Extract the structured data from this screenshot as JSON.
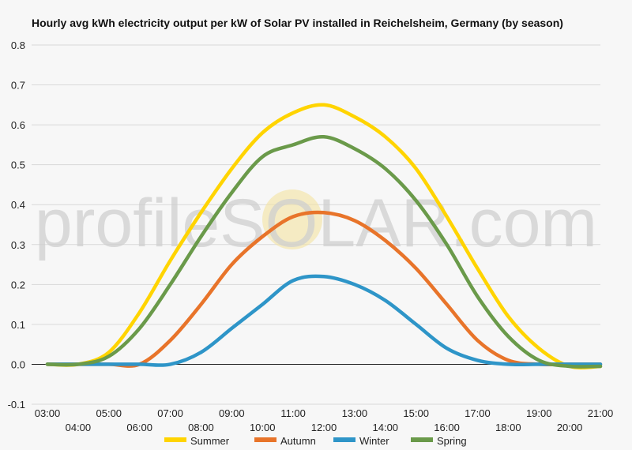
{
  "chart_data": {
    "type": "line",
    "title": "Hourly avg kWh electricity output per kW of Solar PV installed in Reichelsheim, Germany (by season)",
    "xlabel": "",
    "ylabel": "",
    "x_range": [
      3,
      21
    ],
    "ylim": [
      -0.1,
      0.8
    ],
    "y_ticks": [
      -0.1,
      0.0,
      0.1,
      0.2,
      0.3,
      0.4,
      0.5,
      0.6,
      0.7,
      0.8
    ],
    "y_tick_labels": [
      "-0.1",
      "0.0",
      "0.1",
      "0.2",
      "0.3",
      "0.4",
      "0.5",
      "0.6",
      "0.7",
      "0.8"
    ],
    "x_ticks_upper": [
      {
        "value": 3,
        "label": "03:00"
      },
      {
        "value": 5,
        "label": "05:00"
      },
      {
        "value": 7,
        "label": "07:00"
      },
      {
        "value": 9,
        "label": "09:00"
      },
      {
        "value": 11,
        "label": "11:00"
      },
      {
        "value": 13,
        "label": "13:00"
      },
      {
        "value": 15,
        "label": "15:00"
      },
      {
        "value": 17,
        "label": "17:00"
      },
      {
        "value": 19,
        "label": "19:00"
      },
      {
        "value": 21,
        "label": "21:00"
      }
    ],
    "x_ticks_lower": [
      {
        "value": 4,
        "label": "04:00"
      },
      {
        "value": 6,
        "label": "06:00"
      },
      {
        "value": 8,
        "label": "08:00"
      },
      {
        "value": 10,
        "label": "10:00"
      },
      {
        "value": 12,
        "label": "12:00"
      },
      {
        "value": 14,
        "label": "14:00"
      },
      {
        "value": 16,
        "label": "16:00"
      },
      {
        "value": 18,
        "label": "18:00"
      },
      {
        "value": 20,
        "label": "20:00"
      }
    ],
    "grid": true,
    "legend_position": "bottom",
    "watermark": "profileSOLAR.com",
    "x": [
      3,
      4,
      5,
      6,
      7,
      8,
      9,
      10,
      11,
      12,
      13,
      14,
      15,
      16,
      17,
      18,
      19,
      20,
      21
    ],
    "series": [
      {
        "name": "Summer",
        "color": "#ffd400",
        "values": [
          0.0,
          0.0,
          0.03,
          0.13,
          0.26,
          0.38,
          0.49,
          0.58,
          0.63,
          0.65,
          0.62,
          0.57,
          0.49,
          0.37,
          0.24,
          0.12,
          0.04,
          -0.005,
          -0.005
        ]
      },
      {
        "name": "Autumn",
        "color": "#e8742a",
        "values": [
          0.0,
          0.0,
          0.0,
          0.0,
          0.06,
          0.15,
          0.25,
          0.32,
          0.37,
          0.38,
          0.36,
          0.31,
          0.24,
          0.15,
          0.06,
          0.01,
          0.0,
          0.0,
          0.0
        ]
      },
      {
        "name": "Winter",
        "color": "#2e95c8",
        "values": [
          0.0,
          0.0,
          0.0,
          0.0,
          0.0,
          0.03,
          0.09,
          0.15,
          0.21,
          0.22,
          0.2,
          0.16,
          0.1,
          0.04,
          0.01,
          0.0,
          0.0,
          0.0,
          0.0
        ]
      },
      {
        "name": "Spring",
        "color": "#6a9a4a",
        "values": [
          0.0,
          0.0,
          0.02,
          0.09,
          0.2,
          0.32,
          0.43,
          0.52,
          0.55,
          0.57,
          0.54,
          0.49,
          0.41,
          0.3,
          0.17,
          0.07,
          0.01,
          -0.005,
          -0.005
        ]
      }
    ]
  }
}
